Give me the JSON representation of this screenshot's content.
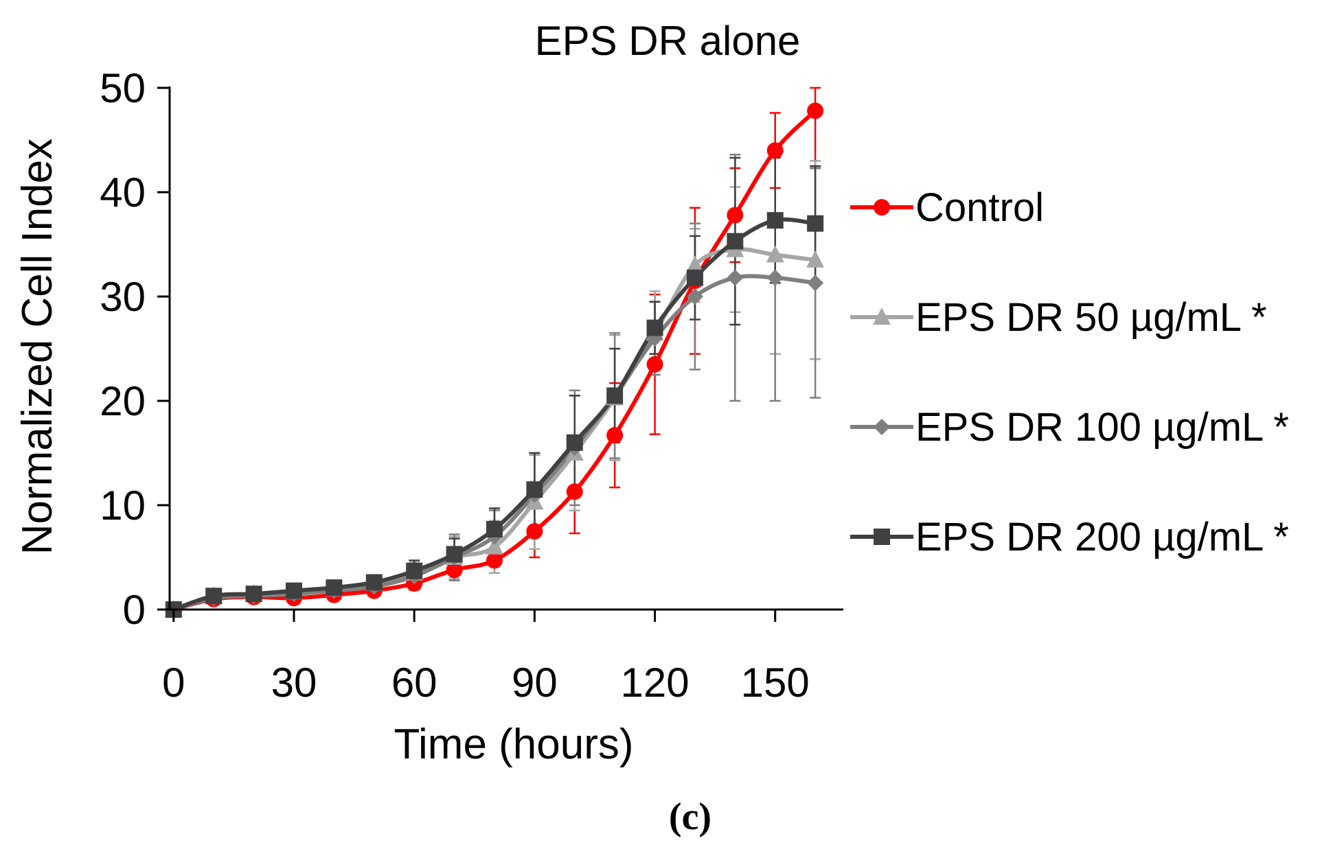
{
  "chart_data": {
    "type": "line",
    "title": "EPS DR alone",
    "xlabel": "Time (hours)",
    "ylabel": "Normalized Cell Index",
    "panel_label": "(c)",
    "xlim": [
      -1,
      167
    ],
    "ylim": [
      0,
      50
    ],
    "xticks": [
      0,
      30,
      60,
      90,
      120,
      150
    ],
    "yticks": [
      0,
      10,
      20,
      30,
      40,
      50
    ],
    "grid": false,
    "legend": "right",
    "x": [
      0,
      10,
      20,
      30,
      40,
      50,
      60,
      70,
      80,
      90,
      100,
      110,
      120,
      130,
      140,
      150,
      160
    ],
    "series": [
      {
        "name": "Control",
        "color": "#ff0000",
        "marker": "circle",
        "values": [
          0,
          1.0,
          1.2,
          1.1,
          1.4,
          1.8,
          2.5,
          3.8,
          4.7,
          7.5,
          11.3,
          16.7,
          23.5,
          31.5,
          37.8,
          44.0,
          47.8
        ],
        "errors": [
          0.3,
          0.3,
          0.3,
          0.3,
          0.3,
          0.4,
          0.6,
          1.0,
          1.2,
          2.5,
          4.0,
          5.0,
          6.7,
          7.0,
          4.5,
          3.6,
          5.5
        ]
      },
      {
        "name": "EPS DR 50 µg/mL *",
        "color": "#a6a6a6",
        "marker": "triangle",
        "values": [
          0,
          1.3,
          1.5,
          1.7,
          2.0,
          2.5,
          3.5,
          5.0,
          6.0,
          10.3,
          15.0,
          20.3,
          26.5,
          33.0,
          34.5,
          34.0,
          33.5
        ],
        "errors": [
          0.3,
          0.3,
          0.3,
          0.3,
          0.3,
          0.5,
          1.0,
          2.0,
          2.5,
          4.5,
          5.5,
          6.0,
          4.0,
          3.5,
          6.0,
          9.5,
          9.5
        ]
      },
      {
        "name": "EPS DR 100 µg/mL *",
        "color": "#7f7f7f",
        "marker": "diamond",
        "values": [
          0,
          1.1,
          1.3,
          1.5,
          1.8,
          2.2,
          3.2,
          5.0,
          7.0,
          11.0,
          15.5,
          20.5,
          26.0,
          30.0,
          31.8,
          31.8,
          31.3
        ],
        "errors": [
          0.3,
          0.3,
          0.3,
          0.3,
          0.3,
          0.5,
          1.2,
          2.2,
          2.5,
          4.0,
          5.5,
          6.0,
          3.5,
          7.0,
          11.8,
          11.8,
          11.0
        ]
      },
      {
        "name": "EPS DR 200 µg/mL *",
        "color": "#404040",
        "marker": "square",
        "values": [
          0,
          1.3,
          1.5,
          1.8,
          2.1,
          2.6,
          3.7,
          5.3,
          7.7,
          11.5,
          16.0,
          20.5,
          27.0,
          31.8,
          35.3,
          37.3,
          37.0
        ],
        "errors": [
          0.3,
          0.3,
          0.3,
          0.3,
          0.3,
          0.5,
          1.0,
          1.5,
          2.0,
          3.5,
          4.5,
          4.5,
          2.5,
          4.0,
          8.0,
          6.0,
          5.5
        ]
      }
    ]
  }
}
